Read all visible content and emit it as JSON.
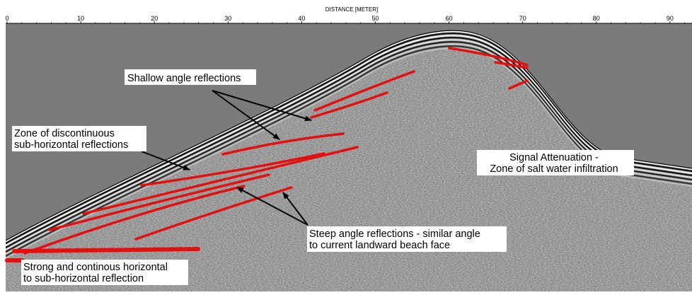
{
  "axis": {
    "title": "DISTANCE [METER]",
    "ticks": [
      "0",
      "10",
      "20",
      "30",
      "40",
      "50",
      "60",
      "70",
      "80",
      "90"
    ]
  },
  "annotations": [
    {
      "lines": [
        "Shallow angle reflections"
      ]
    },
    {
      "lines": [
        "Zone of discontinuous",
        "sub-horizontal reflections"
      ]
    },
    {
      "lines": [
        "Signal Attenuation -",
        "Zone of salt water infiltration"
      ]
    },
    {
      "lines": [
        "Steep angle reflections - similar angle",
        "to current landward beach face"
      ]
    },
    {
      "lines": [
        "Strong and continous horizontal",
        "to sub-horizontal reflection"
      ]
    }
  ]
}
